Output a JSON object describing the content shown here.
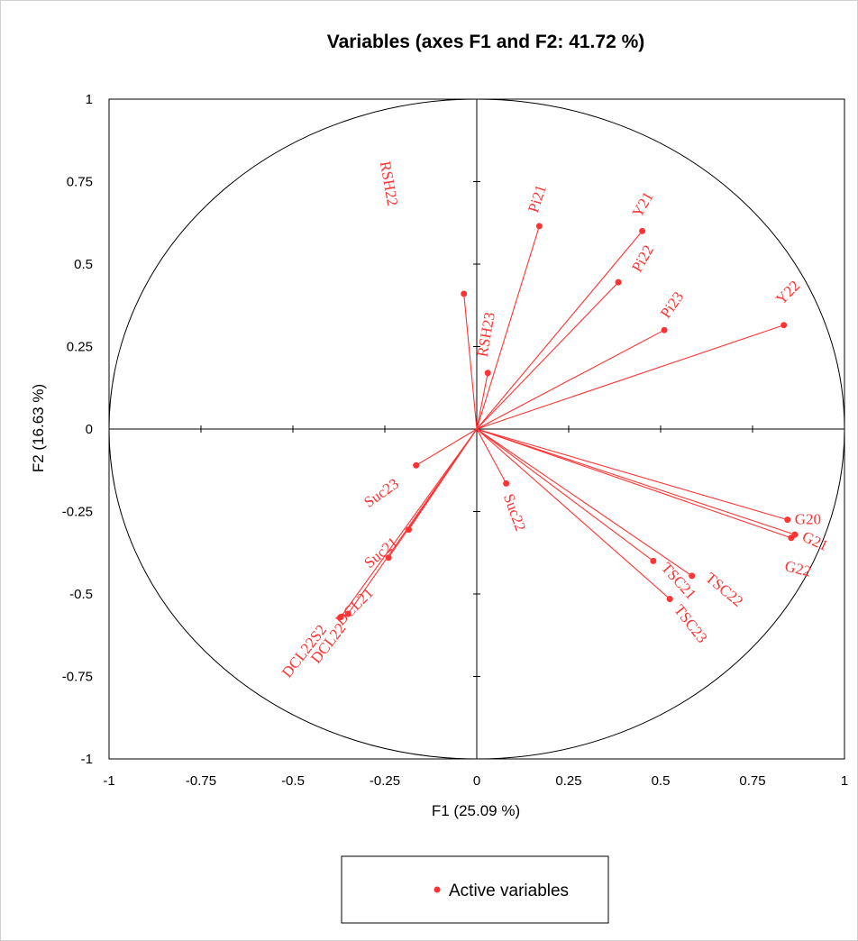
{
  "chart_data": {
    "type": "scatter",
    "title": "Variables (axes F1 and F2: 41.72 %)",
    "xlabel": "F1 (25.09 %)",
    "ylabel": "F2 (16.63 %)",
    "xlim": [
      -1,
      1
    ],
    "ylim": [
      -1,
      1
    ],
    "x_ticks": [
      "-1",
      "-0.75",
      "-0.5",
      "-0.25",
      "0",
      "0.25",
      "0.5",
      "0.75",
      "1"
    ],
    "y_ticks": [
      "1",
      "0.75",
      "0.5",
      "0.25",
      "0",
      "-0.25",
      "-0.5",
      "-0.75",
      "-1"
    ],
    "correlation_circle": true,
    "legend": {
      "position": "bottom",
      "entries": [
        "Active variables"
      ]
    },
    "colors": {
      "series": "#ff3333",
      "axes": "#000000"
    },
    "series": [
      {
        "name": "Active variables",
        "points": [
          {
            "label": "Pi21",
            "x": 0.17,
            "y": 0.615
          },
          {
            "label": "Y21",
            "x": 0.45,
            "y": 0.6
          },
          {
            "label": "Pi22",
            "x": 0.385,
            "y": 0.445
          },
          {
            "label": "Pi23",
            "x": 0.51,
            "y": 0.3
          },
          {
            "label": "Y22",
            "x": 0.835,
            "y": 0.315
          },
          {
            "label": "RSH22",
            "x": -0.035,
            "y": 0.41
          },
          {
            "label": "RSH23",
            "x": 0.03,
            "y": 0.17
          },
          {
            "label": "Suc23",
            "x": -0.165,
            "y": -0.11
          },
          {
            "label": "Suc22",
            "x": 0.08,
            "y": -0.165
          },
          {
            "label": "Suc21",
            "x": -0.185,
            "y": -0.305
          },
          {
            "label": "DCL21",
            "x": -0.24,
            "y": -0.39
          },
          {
            "label": "DCL22S2",
            "x": -0.37,
            "y": -0.57
          },
          {
            "label": "DCL22",
            "x": -0.35,
            "y": -0.56
          },
          {
            "label": "TSC21",
            "x": 0.48,
            "y": -0.4
          },
          {
            "label": "TSC22",
            "x": 0.585,
            "y": -0.445
          },
          {
            "label": "TSC23",
            "x": 0.525,
            "y": -0.515
          },
          {
            "label": "G20",
            "x": 0.845,
            "y": -0.275
          },
          {
            "label": "G21",
            "x": 0.865,
            "y": -0.32
          },
          {
            "label": "G22",
            "x": 0.855,
            "y": -0.33
          }
        ]
      }
    ]
  }
}
